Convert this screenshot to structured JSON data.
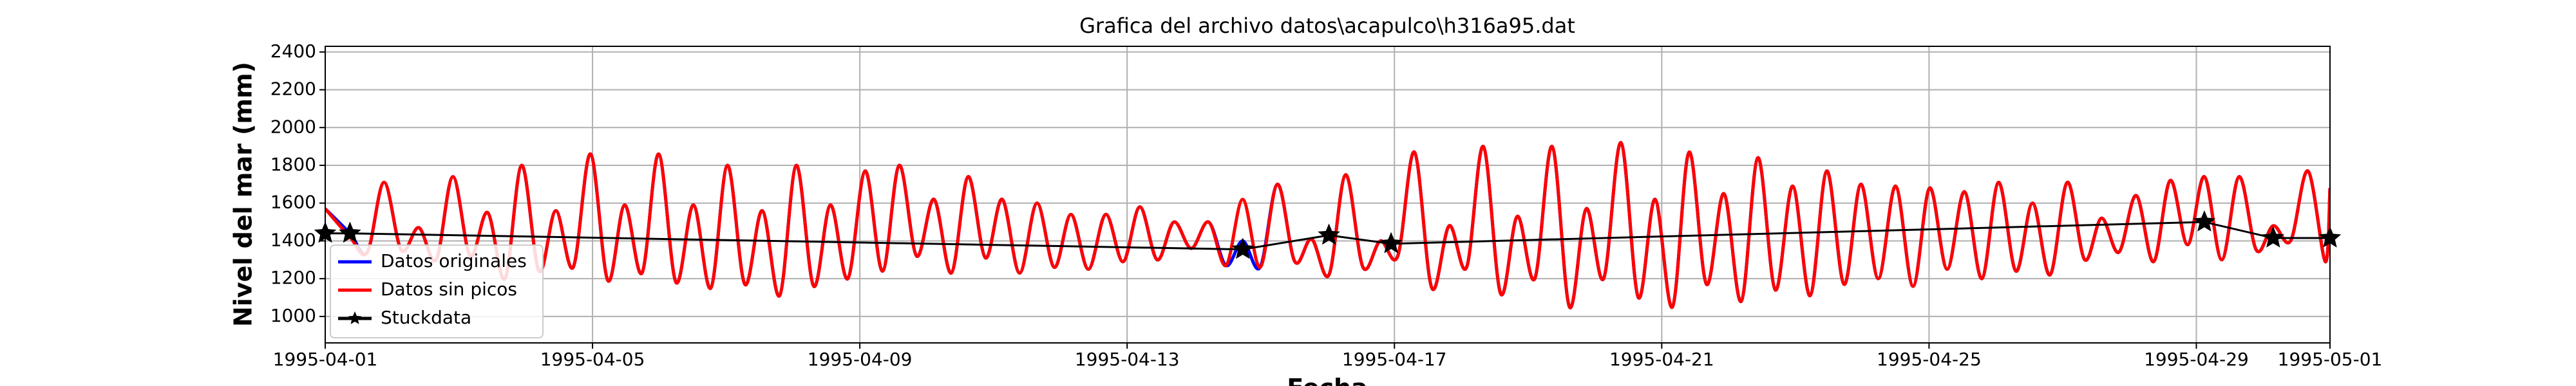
{
  "chart_data": {
    "type": "line",
    "title": "Grafica del archivo datos\\acapulco\\h316a95.dat",
    "ylabel": "Nivel del mar (mm)",
    "xlabel": "Fecha",
    "xlim": [
      0,
      30
    ],
    "ylim": [
      860,
      2430
    ],
    "xticks": [
      {
        "value": 0,
        "label": "1995-04-01"
      },
      {
        "value": 4,
        "label": "1995-04-05"
      },
      {
        "value": 8,
        "label": "1995-04-09"
      },
      {
        "value": 12,
        "label": "1995-04-13"
      },
      {
        "value": 16,
        "label": "1995-04-17"
      },
      {
        "value": 20,
        "label": "1995-04-21"
      },
      {
        "value": 24,
        "label": "1995-04-25"
      },
      {
        "value": 28,
        "label": "1995-04-29"
      },
      {
        "value": 30,
        "label": "1995-05-01"
      }
    ],
    "yticks": [
      1000,
      1200,
      1400,
      1600,
      1800,
      2000,
      2200,
      2400
    ],
    "grid": true,
    "legend": "lower left",
    "x": [
      0,
      0.37,
      0.63,
      0.88,
      1.14,
      1.4,
      1.66,
      1.91,
      2.17,
      2.43,
      2.69,
      2.94,
      3.2,
      3.45,
      3.71,
      3.97,
      4.23,
      4.48,
      4.74,
      4.99,
      5.25,
      5.51,
      5.77,
      6.02,
      6.28,
      6.54,
      6.8,
      7.05,
      7.31,
      7.56,
      7.82,
      8.08,
      8.34,
      8.59,
      8.85,
      9.11,
      9.37,
      9.62,
      9.88,
      10.13,
      10.39,
      10.65,
      10.91,
      11.16,
      11.42,
      11.68,
      11.94,
      12.19,
      12.45,
      12.7,
      12.96,
      13.22,
      13.48,
      13.73,
      13.99,
      14.25,
      14.51,
      14.76,
      15.02,
      15.27,
      15.53,
      15.79,
      16.05,
      16.3,
      16.56,
      16.82,
      17.08,
      17.33,
      17.59,
      17.84,
      18.1,
      18.36,
      18.62,
      18.87,
      19.13,
      19.39,
      19.65,
      19.9,
      20.16,
      20.41,
      20.67,
      20.93,
      21.19,
      21.44,
      21.7,
      21.96,
      22.22,
      22.47,
      22.73,
      22.98,
      23.24,
      23.5,
      23.76,
      24.01,
      24.27,
      24.53,
      24.79,
      25.04,
      25.3,
      25.55,
      25.81,
      26.07,
      26.33,
      26.58,
      26.84,
      27.1,
      27.36,
      27.61,
      27.87,
      28.12,
      28.38,
      28.64,
      28.9,
      29.15,
      29.41,
      29.67,
      29.93,
      30
    ],
    "series": [
      {
        "name": "Datos originales",
        "color": "#0000ff",
        "values": [
          1570,
          1440,
          1340,
          1710,
          1350,
          1470,
          1300,
          1740,
          1320,
          1550,
          1200,
          1800,
          1240,
          1560,
          1260,
          1860,
          1190,
          1590,
          1230,
          1860,
          1180,
          1590,
          1150,
          1800,
          1170,
          1560,
          1110,
          1800,
          1160,
          1590,
          1200,
          1770,
          1240,
          1800,
          1320,
          1620,
          1230,
          1740,
          1310,
          1620,
          1230,
          1600,
          1260,
          1540,
          1250,
          1540,
          1290,
          1580,
          1300,
          1500,
          1360,
          1500,
          1270,
          1400,
          1260,
          1700,
          1290,
          1410,
          1220,
          1750,
          1260,
          1400,
          1320,
          1870,
          1150,
          1480,
          1260,
          1900,
          1120,
          1530,
          1200,
          1900,
          1050,
          1570,
          1200,
          1920,
          1100,
          1620,
          1050,
          1870,
          1170,
          1650,
          1080,
          1840,
          1140,
          1690,
          1110,
          1770,
          1170,
          1700,
          1200,
          1690,
          1160,
          1680,
          1250,
          1660,
          1200,
          1710,
          1240,
          1600,
          1220,
          1710,
          1300,
          1520,
          1340,
          1640,
          1290,
          1720,
          1380,
          1740,
          1300,
          1740,
          1350,
          1480,
          1400,
          1770,
          1290,
          1680
        ]
      },
      {
        "name": "Datos sin picos",
        "color": "#ff0000",
        "values": [
          1570,
          1420,
          1340,
          1710,
          1350,
          1470,
          1300,
          1740,
          1320,
          1550,
          1200,
          1800,
          1240,
          1560,
          1260,
          1860,
          1190,
          1590,
          1230,
          1860,
          1180,
          1590,
          1150,
          1800,
          1170,
          1560,
          1110,
          1800,
          1160,
          1590,
          1200,
          1770,
          1240,
          1800,
          1320,
          1620,
          1230,
          1740,
          1310,
          1620,
          1230,
          1600,
          1260,
          1540,
          1250,
          1540,
          1290,
          1580,
          1300,
          1500,
          1360,
          1500,
          1270,
          1620,
          1260,
          1700,
          1290,
          1410,
          1220,
          1750,
          1260,
          1400,
          1320,
          1870,
          1150,
          1480,
          1260,
          1900,
          1120,
          1530,
          1200,
          1900,
          1050,
          1570,
          1200,
          1920,
          1100,
          1620,
          1050,
          1870,
          1170,
          1650,
          1080,
          1840,
          1140,
          1690,
          1110,
          1770,
          1170,
          1700,
          1200,
          1690,
          1160,
          1680,
          1250,
          1660,
          1200,
          1710,
          1240,
          1600,
          1220,
          1710,
          1300,
          1520,
          1340,
          1640,
          1290,
          1720,
          1380,
          1740,
          1300,
          1740,
          1350,
          1480,
          1400,
          1770,
          1290,
          1680
        ]
      },
      {
        "name": "Stuckdata",
        "color": "#000000",
        "marker": "*",
        "x": [
          0,
          0.37,
          13.73,
          15.02,
          15.95,
          28.12,
          29.15,
          30
        ],
        "values": [
          1440,
          1440,
          1355,
          1430,
          1385,
          1500,
          1415,
          1415
        ]
      }
    ]
  }
}
